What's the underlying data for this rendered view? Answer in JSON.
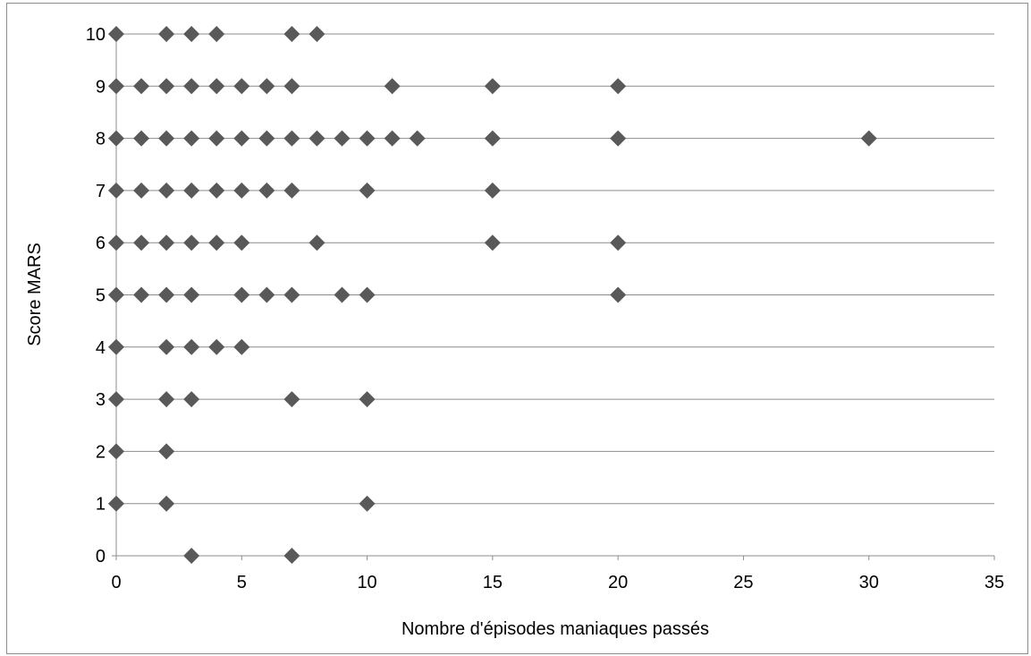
{
  "chart_data": {
    "type": "scatter",
    "title": "",
    "xlabel": "Nombre d'épisodes maniaques passés",
    "ylabel": "Score MARS",
    "xlim": [
      0,
      35
    ],
    "ylim": [
      0,
      10
    ],
    "x_ticks": [
      "0",
      "5",
      "10",
      "15",
      "20",
      "25",
      "30",
      "35"
    ],
    "y_ticks": [
      "0",
      "1",
      "2",
      "3",
      "4",
      "5",
      "6",
      "7",
      "8",
      "9",
      "10"
    ],
    "grid": "horizontal",
    "legend": "none",
    "marker": "diamond",
    "colors": {
      "marker": "#595959",
      "grid": "#8c8c8c",
      "axis": "#8c8c8c"
    },
    "points": [
      [
        0,
        10
      ],
      [
        2,
        10
      ],
      [
        3,
        10
      ],
      [
        4,
        10
      ],
      [
        7,
        10
      ],
      [
        8,
        10
      ],
      [
        0,
        9
      ],
      [
        1,
        9
      ],
      [
        2,
        9
      ],
      [
        3,
        9
      ],
      [
        4,
        9
      ],
      [
        5,
        9
      ],
      [
        6,
        9
      ],
      [
        7,
        9
      ],
      [
        11,
        9
      ],
      [
        15,
        9
      ],
      [
        20,
        9
      ],
      [
        0,
        8
      ],
      [
        1,
        8
      ],
      [
        2,
        8
      ],
      [
        3,
        8
      ],
      [
        4,
        8
      ],
      [
        5,
        8
      ],
      [
        6,
        8
      ],
      [
        7,
        8
      ],
      [
        8,
        8
      ],
      [
        9,
        8
      ],
      [
        10,
        8
      ],
      [
        11,
        8
      ],
      [
        12,
        8
      ],
      [
        15,
        8
      ],
      [
        20,
        8
      ],
      [
        30,
        8
      ],
      [
        0,
        7
      ],
      [
        1,
        7
      ],
      [
        2,
        7
      ],
      [
        3,
        7
      ],
      [
        4,
        7
      ],
      [
        5,
        7
      ],
      [
        6,
        7
      ],
      [
        7,
        7
      ],
      [
        10,
        7
      ],
      [
        15,
        7
      ],
      [
        0,
        6
      ],
      [
        1,
        6
      ],
      [
        2,
        6
      ],
      [
        3,
        6
      ],
      [
        4,
        6
      ],
      [
        5,
        6
      ],
      [
        8,
        6
      ],
      [
        15,
        6
      ],
      [
        20,
        6
      ],
      [
        0,
        5
      ],
      [
        1,
        5
      ],
      [
        2,
        5
      ],
      [
        3,
        5
      ],
      [
        5,
        5
      ],
      [
        6,
        5
      ],
      [
        7,
        5
      ],
      [
        9,
        5
      ],
      [
        10,
        5
      ],
      [
        20,
        5
      ],
      [
        0,
        4
      ],
      [
        2,
        4
      ],
      [
        3,
        4
      ],
      [
        4,
        4
      ],
      [
        5,
        4
      ],
      [
        0,
        3
      ],
      [
        2,
        3
      ],
      [
        3,
        3
      ],
      [
        7,
        3
      ],
      [
        10,
        3
      ],
      [
        0,
        2
      ],
      [
        2,
        2
      ],
      [
        0,
        1
      ],
      [
        2,
        1
      ],
      [
        10,
        1
      ],
      [
        3,
        0
      ],
      [
        7,
        0
      ]
    ]
  }
}
